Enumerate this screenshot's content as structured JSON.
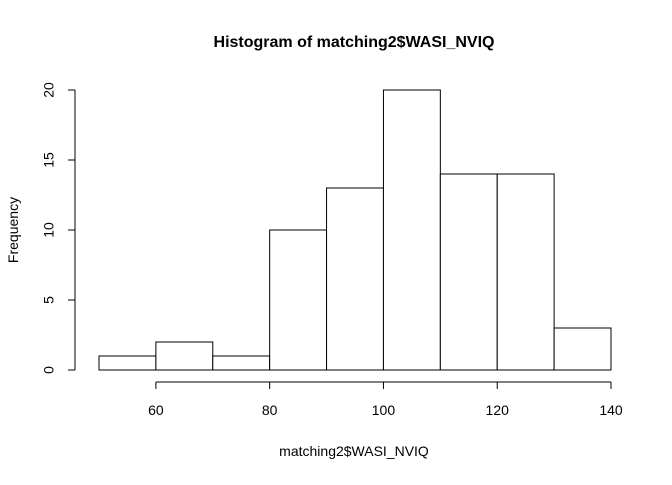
{
  "chart_data": {
    "type": "bar",
    "title": "Histogram of matching2$WASI_NVIQ",
    "xlabel": "matching2$WASI_NVIQ",
    "ylabel": "Frequency",
    "bins": [
      {
        "start": 50,
        "end": 60,
        "count": 1
      },
      {
        "start": 60,
        "end": 70,
        "count": 2
      },
      {
        "start": 70,
        "end": 80,
        "count": 1
      },
      {
        "start": 80,
        "end": 90,
        "count": 10
      },
      {
        "start": 90,
        "end": 100,
        "count": 13
      },
      {
        "start": 100,
        "end": 110,
        "count": 20
      },
      {
        "start": 110,
        "end": 120,
        "count": 14
      },
      {
        "start": 120,
        "end": 130,
        "count": 14
      },
      {
        "start": 130,
        "end": 140,
        "count": 3
      }
    ],
    "xlim": [
      50,
      140
    ],
    "ylim": [
      0,
      20
    ],
    "xticks": [
      60,
      80,
      100,
      120,
      140
    ],
    "xtick_labels": [
      "60",
      "80",
      "100",
      "120",
      "140"
    ],
    "yticks": [
      0,
      5,
      10,
      15,
      20
    ],
    "ytick_labels": [
      "0",
      "5",
      "10",
      "15",
      "20"
    ],
    "grid": false,
    "legend": "none",
    "colors": {
      "bar_fill": "#ffffff",
      "bar_stroke": "#000000",
      "axis": "#000000",
      "background": "#ffffff"
    }
  }
}
